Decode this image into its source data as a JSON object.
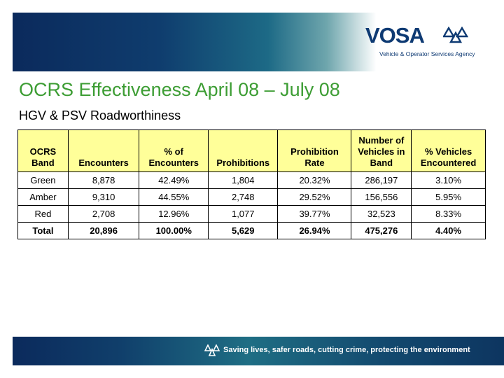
{
  "brand": {
    "logo_text": "VOSA",
    "agency_name": "Vehicle & Operator Services Agency"
  },
  "title": "OCRS Effectiveness April 08 – July 08",
  "subtitle": "HGV & PSV Roadworthiness",
  "table": {
    "headers": {
      "band": "OCRS Band",
      "encounters": "Encounters",
      "pct_encounters": "% of Encounters",
      "prohibitions": "Prohibitions",
      "prohibition_rate": "Prohibition Rate",
      "vehicles_in_band": "Number of Vehicles in Band",
      "pct_vehicles": "% Vehicles Encountered"
    },
    "rows": [
      {
        "band": "Green",
        "encounters": "8,878",
        "pct_encounters": "42.49%",
        "prohibitions": "1,804",
        "prohibition_rate": "20.32%",
        "vehicles_in_band": "286,197",
        "pct_vehicles": "3.10%"
      },
      {
        "band": "Amber",
        "encounters": "9,310",
        "pct_encounters": "44.55%",
        "prohibitions": "2,748",
        "prohibition_rate": "29.52%",
        "vehicles_in_band": "156,556",
        "pct_vehicles": "5.95%"
      },
      {
        "band": "Red",
        "encounters": "2,708",
        "pct_encounters": "12.96%",
        "prohibitions": "1,077",
        "prohibition_rate": "39.77%",
        "vehicles_in_band": "32,523",
        "pct_vehicles": "8.33%"
      },
      {
        "band": "Total",
        "encounters": "20,896",
        "pct_encounters": "100.00%",
        "prohibitions": "5,629",
        "prohibition_rate": "26.94%",
        "vehicles_in_band": "475,276",
        "pct_vehicles": "4.40%"
      }
    ]
  },
  "footer": {
    "slogan": "Saving lives, safer roads, cutting crime, protecting the environment"
  },
  "colors": {
    "title_green": "#3d9d34",
    "header_fill": "#ffff99",
    "brand_navy": "#0e3a73"
  }
}
